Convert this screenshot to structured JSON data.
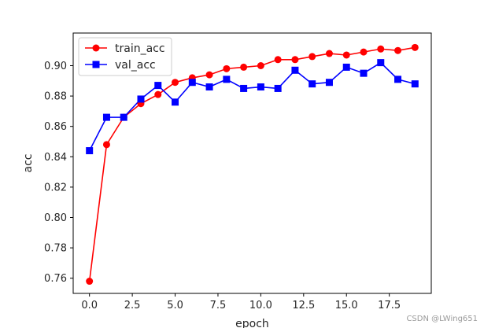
{
  "chart_data": {
    "type": "line",
    "xlabel": "epoch",
    "ylabel": "acc",
    "xlim": [
      -0.95,
      19.95
    ],
    "ylim": [
      0.75,
      0.9215
    ],
    "xticks": [
      0,
      2.5,
      5,
      7.5,
      10,
      12.5,
      15,
      17.5
    ],
    "xtick_labels": [
      "0.0",
      "2.5",
      "5.0",
      "7.5",
      "10.0",
      "12.5",
      "15.0",
      "17.5"
    ],
    "yticks": [
      0.76,
      0.78,
      0.8,
      0.82,
      0.84,
      0.86,
      0.88,
      0.9
    ],
    "ytick_labels": [
      "0.76",
      "0.78",
      "0.80",
      "0.82",
      "0.84",
      "0.86",
      "0.88",
      "0.90"
    ],
    "grid": false,
    "legend_position": "top-left",
    "x": [
      0,
      1,
      2,
      3,
      4,
      5,
      6,
      7,
      8,
      9,
      10,
      11,
      12,
      13,
      14,
      15,
      16,
      17,
      18,
      19
    ],
    "series": [
      {
        "name": "train_acc",
        "color": "#ff0000",
        "marker": "circle",
        "values": [
          0.758,
          0.848,
          0.866,
          0.875,
          0.881,
          0.889,
          0.892,
          0.894,
          0.898,
          0.899,
          0.9,
          0.904,
          0.904,
          0.906,
          0.908,
          0.907,
          0.909,
          0.911,
          0.91,
          0.912
        ]
      },
      {
        "name": "val_acc",
        "color": "#0000ff",
        "marker": "square",
        "values": [
          0.844,
          0.866,
          0.866,
          0.878,
          0.887,
          0.876,
          0.889,
          0.886,
          0.891,
          0.885,
          0.886,
          0.885,
          0.897,
          0.888,
          0.889,
          0.899,
          0.895,
          0.902,
          0.891,
          0.888
        ]
      }
    ]
  },
  "watermark": "CSDN @LWing651"
}
